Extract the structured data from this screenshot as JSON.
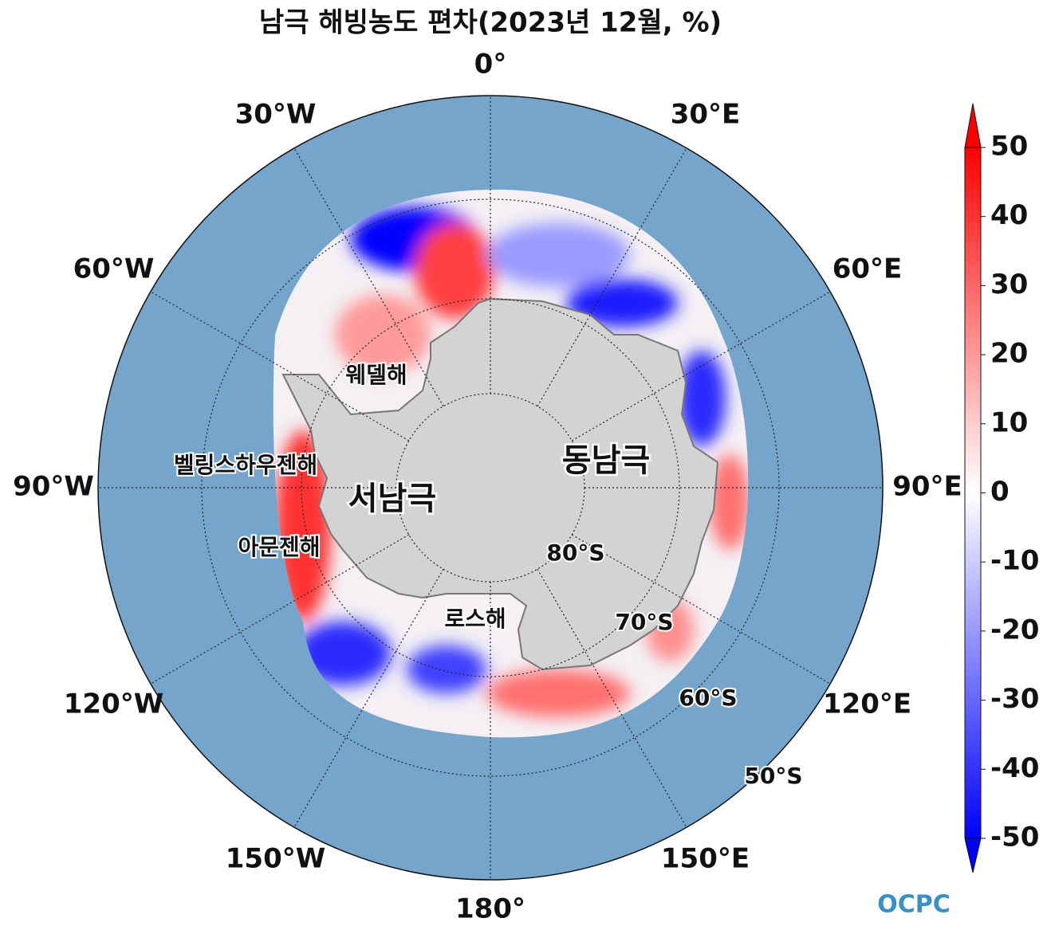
{
  "title": "남극 해빙농도 편차(2023년 12월, %)",
  "map": {
    "longitude_labels": [
      "0°",
      "30°E",
      "60°E",
      "90°E",
      "120°E",
      "150°E",
      "180°",
      "150°W",
      "120°W",
      "90°W",
      "60°W",
      "30°W"
    ],
    "latitude_labels": [
      "80°S",
      "70°S",
      "60°S",
      "50°S"
    ],
    "region_labels": [
      "웨델해",
      "벨링스하우젠해",
      "아문젠해",
      "로스해",
      "동남극",
      "서남극"
    ]
  },
  "colorbar": {
    "range": [
      -50,
      50
    ],
    "ticks": [
      50,
      40,
      30,
      20,
      10,
      0,
      -10,
      -20,
      -30,
      -40,
      -50
    ]
  },
  "logo": "OCPC"
}
